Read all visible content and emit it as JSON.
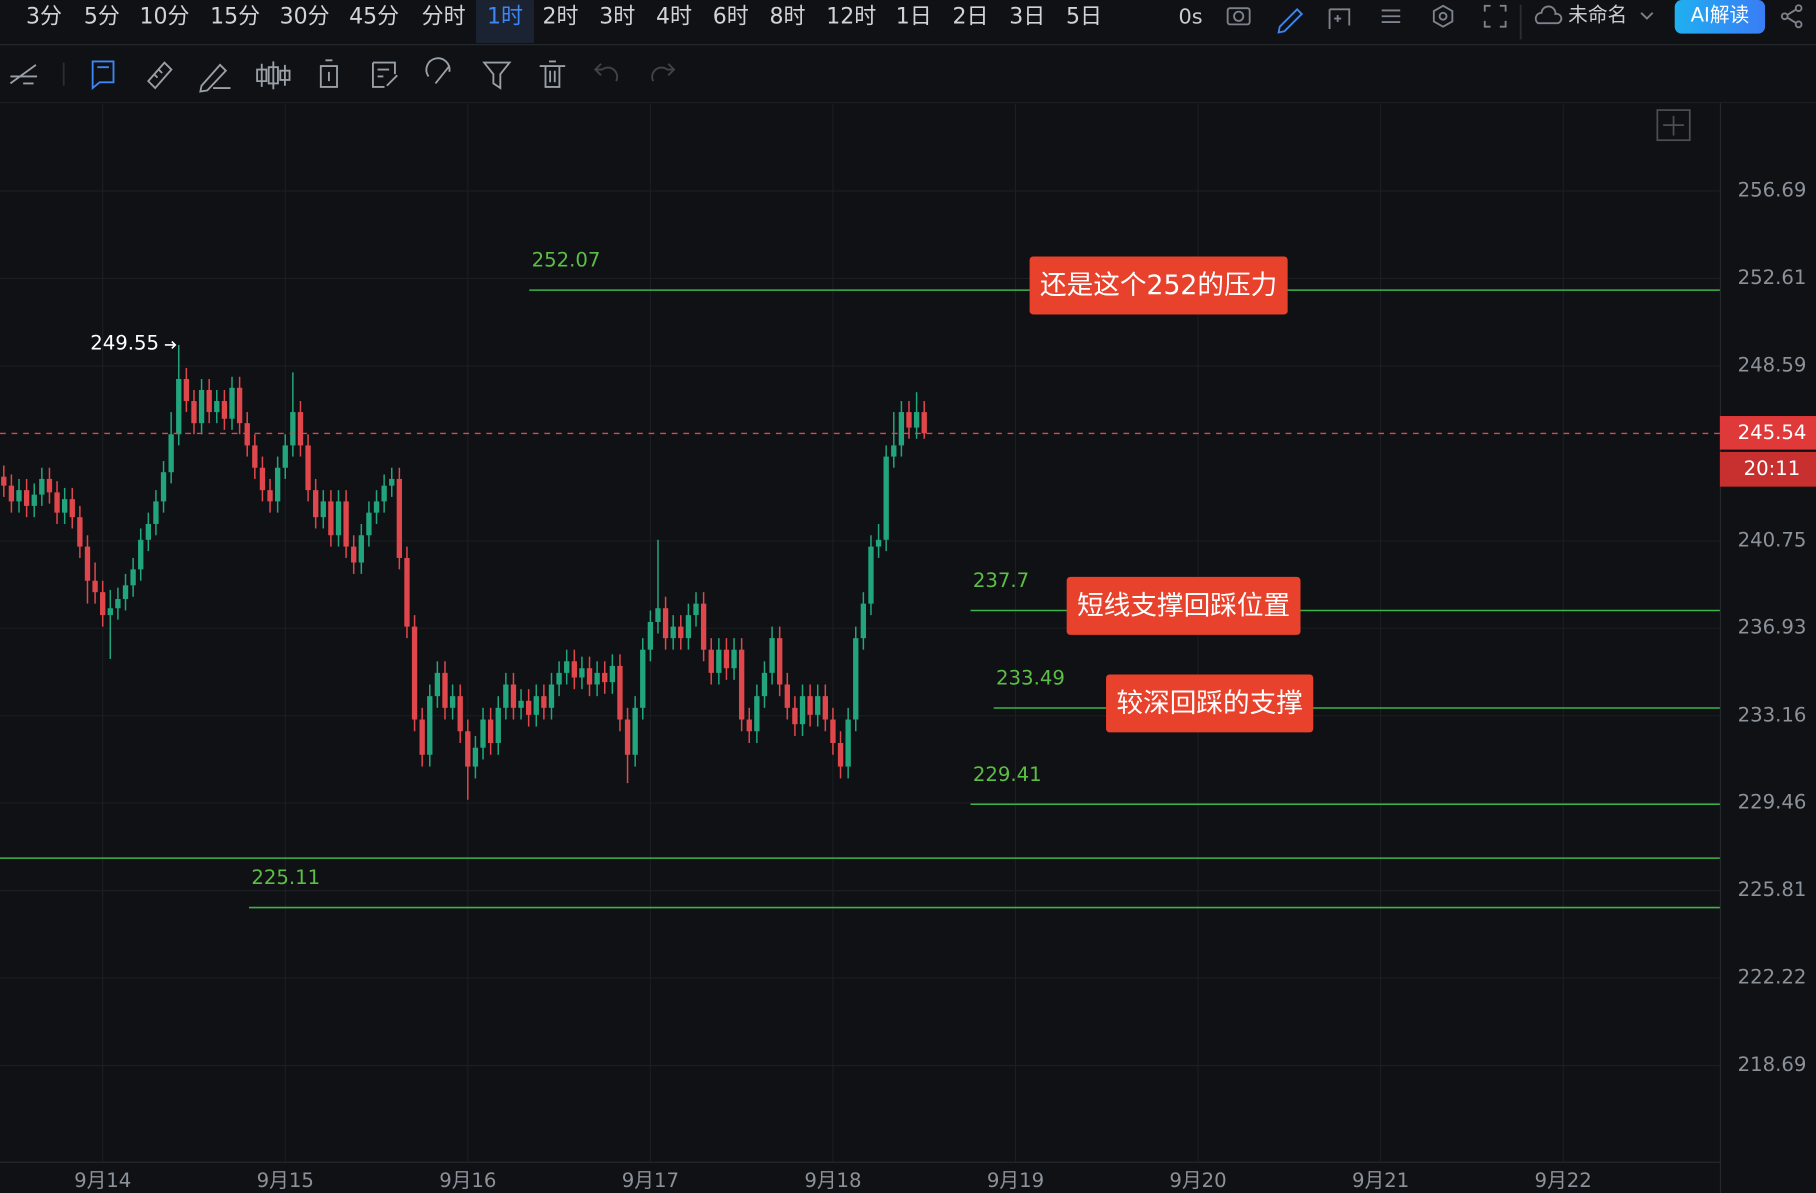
{
  "toolbar": {
    "intervals": [
      "3分",
      "5分",
      "10分",
      "15分",
      "30分",
      "45分",
      "分时",
      "1时",
      "2时",
      "3时",
      "4时",
      "6时",
      "8时",
      "12时",
      "1日",
      "2日",
      "3日",
      "5日"
    ],
    "active_index": 7,
    "refresh": "0s",
    "layout_name": "未命名",
    "ai_button": "AI解读"
  },
  "chart_data": {
    "type": "candlestick",
    "log_scale": true,
    "grid": true,
    "up_color": "#22a57c",
    "down_color": "#e0474c",
    "level_color": "#3cb44a",
    "ylim": [
      214.87,
      260.8
    ],
    "yticks": [
      256.69,
      252.61,
      248.59,
      240.75,
      236.93,
      233.16,
      229.46,
      225.81,
      222.22,
      218.69
    ],
    "xlim": [
      -0.5,
      225.6
    ],
    "xticks": [
      {
        "value": 13,
        "label": "9月14"
      },
      {
        "value": 37,
        "label": "9月15"
      },
      {
        "value": 61,
        "label": "9月16"
      },
      {
        "value": 85,
        "label": "9月17"
      },
      {
        "value": 109,
        "label": "9月18"
      },
      {
        "value": 133,
        "label": "9月19"
      },
      {
        "value": 157,
        "label": "9月20"
      },
      {
        "value": 181,
        "label": "9月21"
      },
      {
        "value": 205,
        "label": "9月22"
      }
    ],
    "open": [
      243.6,
      243.2,
      242.5,
      243.0,
      242.3,
      242.8,
      243.5,
      242.9,
      242.0,
      242.6,
      241.8,
      240.5,
      239.0,
      238.5,
      237.5,
      237.8,
      238.2,
      238.8,
      239.5,
      240.8,
      241.5,
      242.5,
      243.8,
      245.5,
      248.0,
      247.0,
      246.0,
      247.5,
      246.5,
      247.0,
      246.2,
      247.6,
      246.0,
      245.0,
      244.0,
      243.0,
      242.5,
      244.0,
      245.0,
      246.5,
      245.0,
      243.0,
      241.8,
      242.5,
      241.0,
      242.5,
      240.5,
      239.8,
      241.0,
      242.0,
      242.5,
      243.2,
      243.5,
      240.0,
      237.0,
      233.0,
      231.5,
      234.0,
      235.0,
      233.5,
      234.0,
      232.5,
      231.0,
      231.8,
      233.0,
      232.0,
      233.5,
      234.5,
      233.5,
      233.8,
      233.2,
      234.0,
      233.5,
      234.5,
      235.0,
      235.5,
      234.8,
      235.2,
      234.5,
      235.0,
      234.6,
      235.3,
      233.0,
      231.5,
      233.5,
      236.0,
      237.2,
      237.8,
      236.5,
      237.0,
      236.5,
      237.5,
      238.0,
      236.0,
      235.0,
      236.0,
      235.2,
      236.0,
      233.0,
      232.5,
      234.0,
      235.0,
      236.5,
      234.5,
      233.5,
      232.8,
      234.0,
      233.2,
      234.0,
      233.0,
      232.0,
      231.0,
      233.0,
      236.5,
      238.0,
      240.5,
      240.8,
      244.5,
      245.0,
      246.5,
      245.8,
      246.5
    ],
    "high": [
      244.1,
      243.7,
      243.5,
      243.5,
      243.3,
      244.0,
      244.0,
      243.4,
      243.1,
      243.1,
      242.3,
      241.0,
      239.8,
      239.0,
      238.6,
      238.7,
      239.3,
      240.0,
      241.3,
      242.0,
      243.0,
      244.3,
      246.5,
      249.55,
      248.5,
      247.5,
      248.0,
      248.0,
      247.5,
      247.5,
      248.1,
      248.1,
      246.5,
      245.5,
      244.5,
      243.5,
      244.5,
      245.5,
      248.3,
      247.0,
      245.5,
      243.5,
      243.0,
      243.0,
      243.0,
      243.0,
      241.0,
      241.5,
      242.5,
      243.0,
      243.7,
      244.0,
      244.0,
      240.5,
      237.5,
      233.5,
      234.5,
      235.5,
      235.5,
      234.5,
      234.5,
      233.0,
      232.3,
      233.5,
      233.5,
      234.0,
      235.0,
      235.0,
      234.3,
      234.3,
      234.5,
      234.5,
      235.0,
      235.5,
      236.0,
      236.0,
      235.7,
      235.7,
      235.5,
      235.5,
      235.8,
      235.8,
      233.5,
      234.0,
      236.5,
      237.7,
      240.8,
      238.3,
      237.5,
      237.5,
      238.0,
      238.5,
      238.5,
      236.5,
      236.5,
      236.5,
      236.5,
      236.5,
      233.5,
      234.5,
      235.5,
      237.0,
      237.0,
      235.0,
      234.0,
      234.5,
      234.5,
      234.5,
      234.5,
      233.5,
      232.5,
      233.5,
      237.0,
      238.5,
      241.0,
      241.5,
      245.0,
      246.5,
      247.0,
      247.0,
      247.4,
      247.0
    ],
    "low": [
      242.7,
      242.0,
      242.0,
      241.8,
      241.8,
      242.3,
      242.4,
      241.5,
      241.5,
      241.3,
      240.0,
      238.0,
      238.0,
      237.0,
      235.6,
      237.3,
      237.7,
      238.3,
      239.0,
      240.3,
      241.0,
      242.0,
      243.3,
      245.0,
      246.5,
      245.5,
      245.5,
      246.0,
      246.0,
      245.7,
      245.7,
      245.5,
      244.5,
      243.5,
      242.5,
      242.0,
      242.0,
      243.5,
      244.5,
      244.5,
      242.5,
      241.3,
      241.3,
      240.5,
      240.5,
      240.0,
      239.3,
      239.3,
      240.5,
      241.5,
      242.0,
      242.7,
      239.5,
      236.5,
      232.5,
      231.0,
      231.0,
      233.5,
      233.0,
      233.0,
      232.0,
      229.6,
      230.5,
      231.3,
      231.5,
      231.5,
      233.0,
      233.0,
      233.0,
      232.7,
      232.7,
      233.0,
      233.0,
      234.0,
      234.5,
      234.3,
      234.3,
      234.0,
      234.0,
      234.1,
      234.1,
      232.5,
      230.3,
      231.0,
      233.0,
      235.5,
      236.7,
      236.0,
      236.0,
      236.0,
      236.0,
      237.0,
      235.5,
      234.5,
      234.5,
      234.7,
      234.7,
      232.5,
      232.0,
      232.0,
      233.5,
      234.5,
      234.0,
      233.0,
      232.3,
      232.3,
      232.7,
      232.7,
      232.5,
      231.5,
      230.5,
      230.5,
      232.5,
      236.0,
      237.5,
      240.0,
      240.3,
      244.0,
      244.5,
      245.3,
      245.3,
      245.3
    ],
    "close": [
      243.2,
      242.5,
      243.0,
      242.3,
      242.8,
      243.5,
      242.9,
      242.0,
      242.6,
      241.8,
      240.5,
      239.0,
      238.5,
      237.5,
      237.8,
      238.2,
      238.8,
      239.5,
      240.8,
      241.5,
      242.5,
      243.8,
      245.5,
      248.0,
      247.0,
      246.0,
      247.5,
      246.5,
      247.0,
      246.2,
      247.6,
      246.0,
      245.0,
      244.0,
      243.0,
      242.5,
      244.0,
      245.0,
      246.5,
      245.0,
      243.0,
      241.8,
      242.5,
      241.0,
      242.5,
      240.5,
      239.8,
      241.0,
      242.0,
      242.5,
      243.2,
      243.5,
      240.0,
      237.0,
      233.0,
      231.5,
      234.0,
      235.0,
      233.5,
      234.0,
      232.5,
      231.0,
      231.8,
      233.0,
      232.0,
      233.5,
      234.5,
      233.5,
      233.8,
      233.2,
      234.0,
      233.5,
      234.5,
      235.0,
      235.5,
      234.8,
      235.2,
      234.5,
      235.0,
      234.6,
      235.3,
      233.0,
      231.5,
      233.5,
      236.0,
      237.2,
      237.8,
      236.5,
      237.0,
      236.5,
      237.5,
      238.0,
      236.0,
      235.0,
      236.0,
      235.2,
      236.0,
      233.0,
      232.5,
      234.0,
      235.0,
      236.5,
      234.5,
      233.5,
      232.8,
      234.0,
      233.2,
      234.0,
      233.0,
      232.0,
      231.0,
      233.0,
      236.5,
      238.0,
      240.5,
      240.8,
      244.5,
      245.0,
      246.5,
      245.8,
      246.5,
      245.54
    ],
    "high_label": 249.55,
    "last_price": 245.54,
    "countdown": "20:11",
    "levels": [
      252.07,
      237.7,
      233.49,
      229.41,
      225.11
    ],
    "unlabeled_levels": [
      227.16
    ],
    "annotations": [
      "还是这个252的压力",
      "短线支撑回踩位置",
      "较深回踩的支撑"
    ]
  }
}
